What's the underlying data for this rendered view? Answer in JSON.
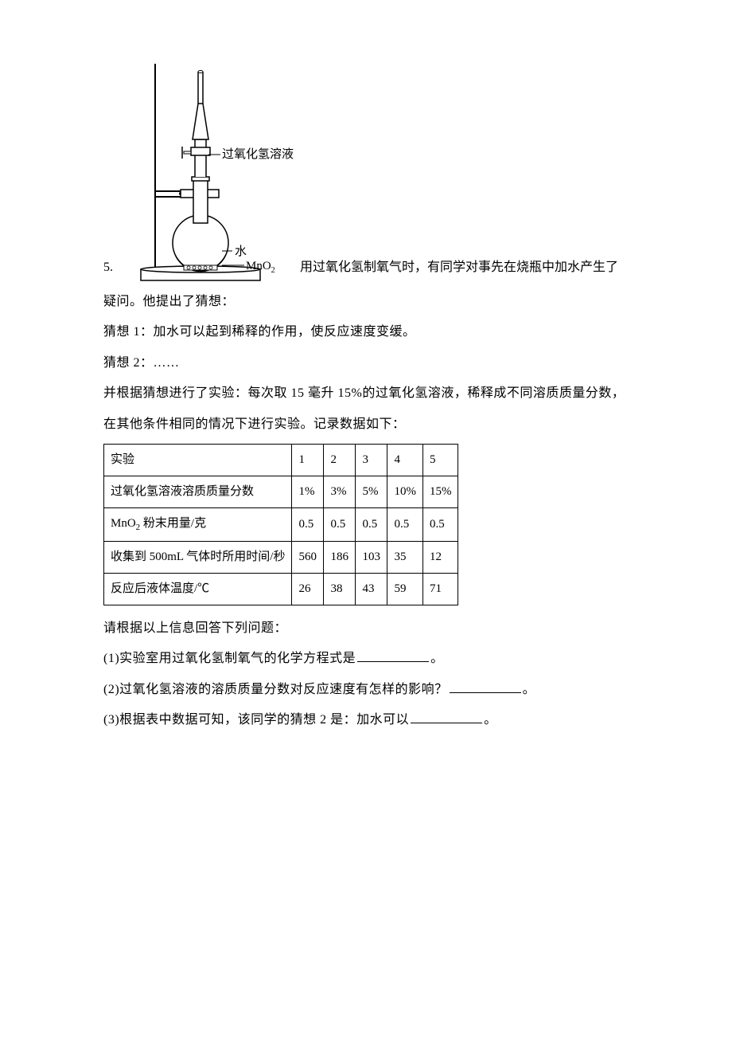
{
  "question_number": "5.",
  "diagram": {
    "label_solution": "过氧化氢溶液",
    "label_water": "水",
    "label_catalyst": "MnO",
    "label_catalyst_sub": "2"
  },
  "intro_text_after_diagram": "用过氧化氢制氧气时，有同学对事先在烧瓶中加水产生了",
  "intro_line2": "疑问。他提出了猜想：",
  "guess1": "猜想 1：加水可以起到稀释的作用，使反应速度变缓。",
  "guess2": "猜想 2：……",
  "experiment_desc1": "并根据猜想进行了实验：每次取 15 毫升 15%的过氧化氢溶液，稀释成不同溶质质量分数，",
  "experiment_desc2": "在其他条件相同的情况下进行实验。记录数据如下：",
  "table": {
    "rows": [
      {
        "label": "实验",
        "values": [
          "1",
          "2",
          "3",
          "4",
          "5"
        ]
      },
      {
        "label": "过氧化氢溶液溶质质量分数",
        "values": [
          "1%",
          "3%",
          "5%",
          "10%",
          "15%"
        ]
      },
      {
        "label_html": "MnO<span class=\"sub\">2</span> 粉末用量/克",
        "values": [
          "0.5",
          "0.5",
          "0.5",
          "0.5",
          "0.5"
        ]
      },
      {
        "label": "收集到 500mL 气体时所用时间/秒",
        "values": [
          "560",
          "186",
          "103",
          "35",
          "12"
        ]
      },
      {
        "label": "反应后液体温度/℃",
        "values": [
          "26",
          "38",
          "43",
          "59",
          "71"
        ]
      }
    ]
  },
  "followup": "请根据以上信息回答下列问题：",
  "q1_prefix": "(1)实验室用过氧化氢制氧气的化学方程式是",
  "q1_suffix": "。",
  "q2_prefix": "(2)过氧化氢溶液的溶质质量分数对反应速度有怎样的影响？",
  "q2_suffix": "。",
  "q3_prefix": "(3)根据表中数据可知，该同学的猜想 2 是：加水可以",
  "q3_suffix": "。"
}
